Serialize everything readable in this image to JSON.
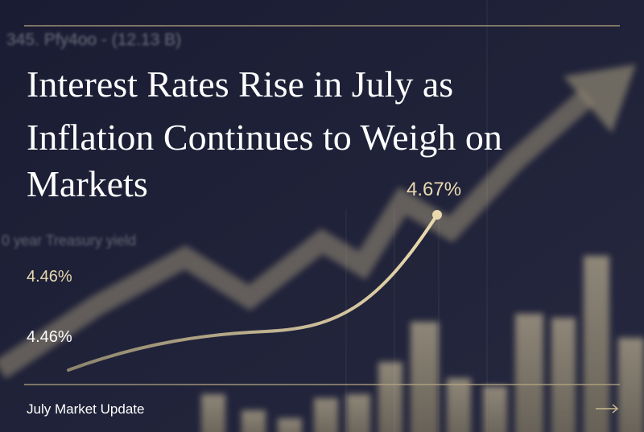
{
  "headline": "Interest Rates Rise in July as Inflation Continues to Weigh on Markets",
  "headline_lines": [
    "Interest Rates Rise in July as",
    "Inflation Continues to Weigh on",
    "Markets"
  ],
  "background_text": {
    "ticker": "345. Pfy4oo   - (12.13 B)",
    "axis_label": "0 year Treasury yield"
  },
  "chart_labels": {
    "peak": "4.67%",
    "upper_left": "4.46%",
    "lower_left": "4.46%"
  },
  "footer": {
    "title": "July Market Update"
  }
}
